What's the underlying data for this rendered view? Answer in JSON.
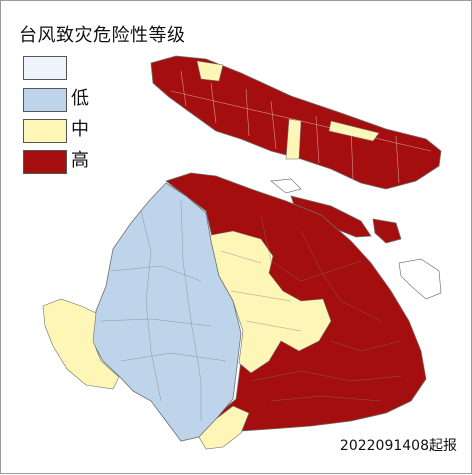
{
  "title": "台风致灾危险性等级",
  "legend": [
    {
      "label": "",
      "color": "#eef4fb"
    },
    {
      "label": "低",
      "color": "#bdd4ea"
    },
    {
      "label": "中",
      "color": "#fdf6b6"
    },
    {
      "label": "高",
      "color": "#a50e0e"
    }
  ],
  "issue_note": "2022091408起报",
  "colors": {
    "low": "#bdd4ea",
    "mid": "#fdf6b6",
    "high": "#a50e0e",
    "border": "#6f6f6f"
  }
}
